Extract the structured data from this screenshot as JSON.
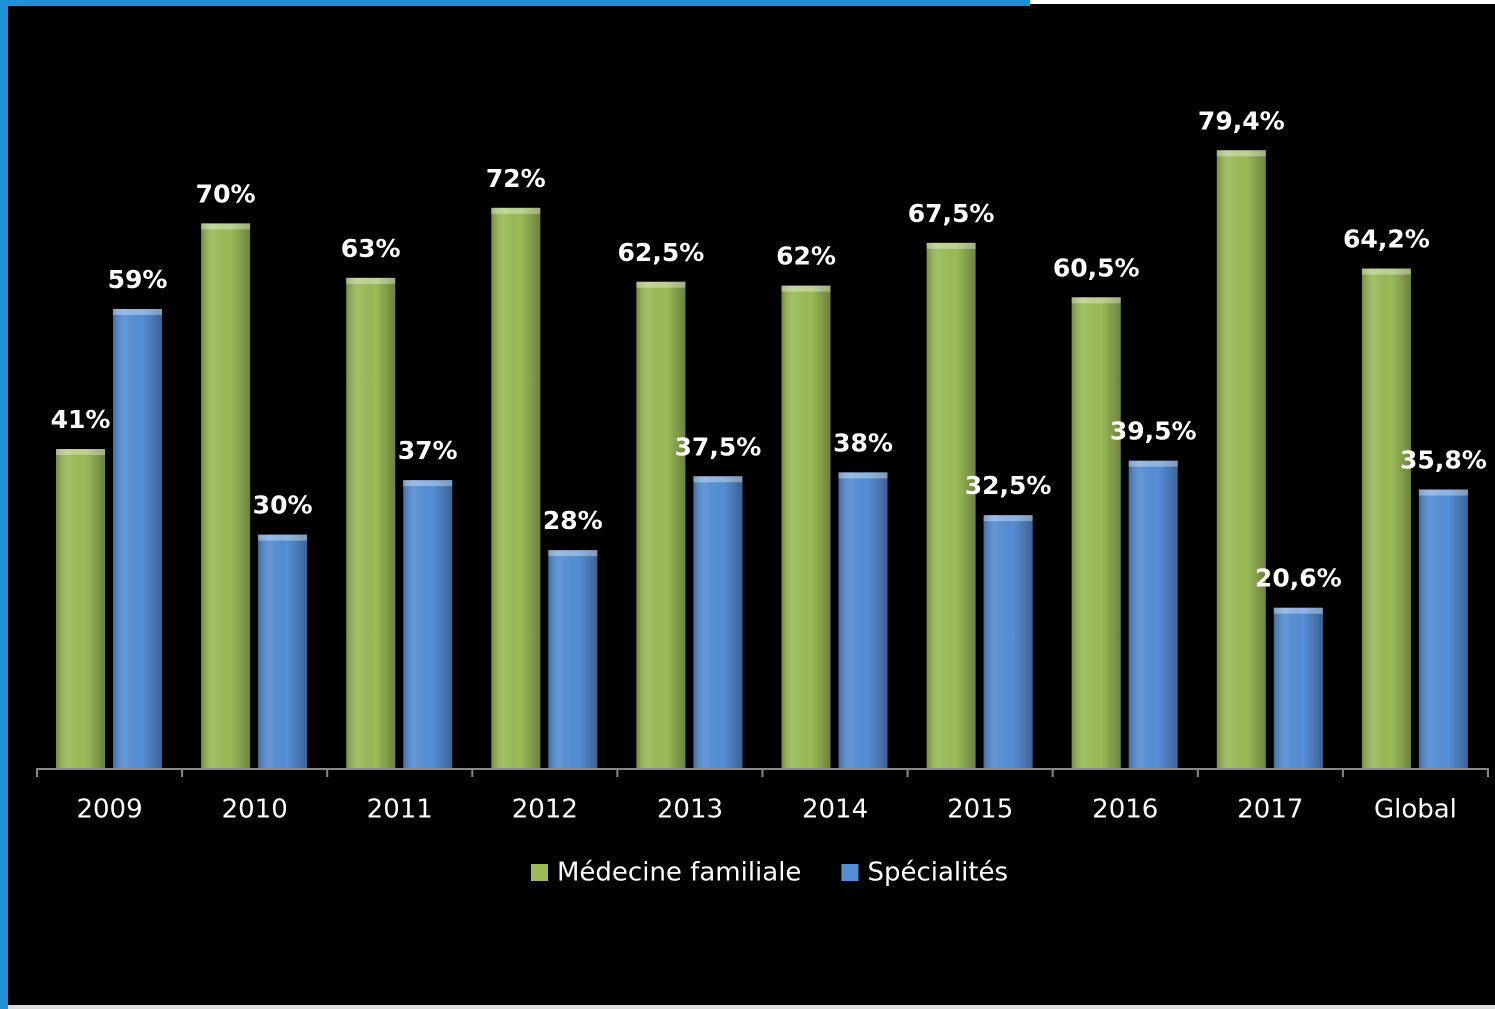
{
  "chart_data": {
    "type": "bar",
    "categories": [
      "2009",
      "2010",
      "2011",
      "2012",
      "2013",
      "2014",
      "2015",
      "2016",
      "2017",
      "Global"
    ],
    "series": [
      {
        "name": "Médecine familiale",
        "color": "#9bbb59",
        "values": [
          41,
          70,
          63,
          72,
          62.5,
          62,
          67.5,
          60.5,
          79.4,
          64.2
        ],
        "value_labels": [
          "41%",
          "70%",
          "63%",
          "72%",
          "62,5%",
          "62%",
          "67,5%",
          "60,5%",
          "79,4%",
          "64,2%"
        ]
      },
      {
        "name": "Spécialités",
        "color": "#558ed5",
        "values": [
          59,
          30,
          37,
          28,
          37.5,
          38,
          32.5,
          39.5,
          20.6,
          35.8
        ],
        "value_labels": [
          "59%",
          "30%",
          "37%",
          "28%",
          "37,5%",
          "38%",
          "32,5%",
          "39,5%",
          "20,6%",
          "35,8%"
        ]
      }
    ],
    "legend": "bottom"
  }
}
